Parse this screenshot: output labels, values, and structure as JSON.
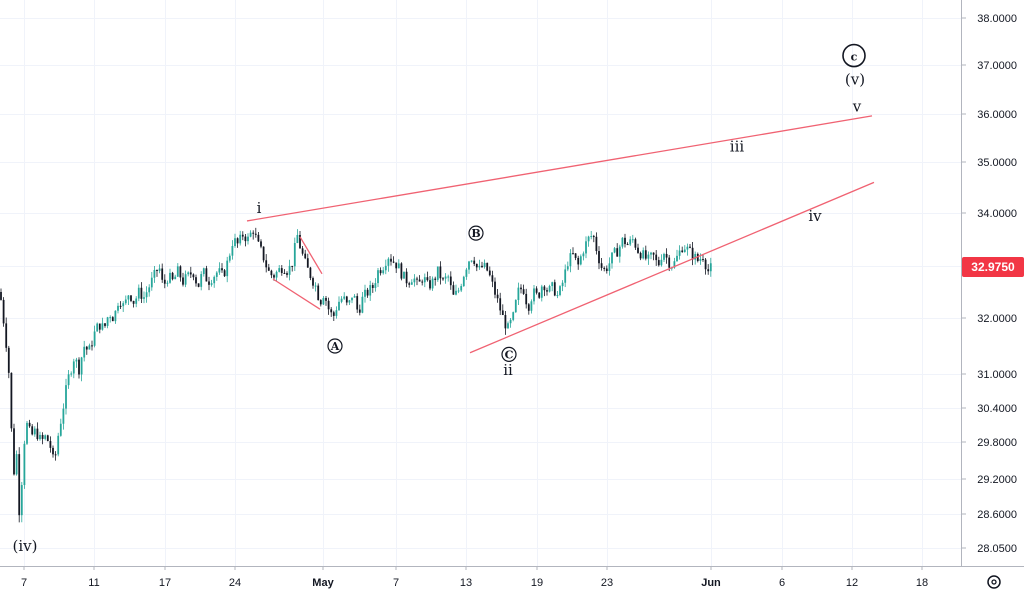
{
  "chart_data": {
    "type": "candlestick",
    "title": "",
    "xlabel": "",
    "ylabel": "",
    "x_ticks": [
      "7",
      "11",
      "17",
      "24",
      "May",
      "7",
      "13",
      "19",
      "23",
      "Jun",
      "6",
      "12",
      "18"
    ],
    "y_ticks": [
      "38.0000",
      "37.0000",
      "36.0000",
      "35.0000",
      "34.0000",
      "33.0000",
      "32.0000",
      "31.0000",
      "30.4000",
      "29.8000",
      "29.2000",
      "28.6000",
      "28.0500"
    ],
    "last_price": "32.9750",
    "price_path": [
      [
        0,
        32.5
      ],
      [
        6,
        31.6
      ],
      [
        10,
        30.8
      ],
      [
        13,
        29.1
      ],
      [
        16,
        29.8
      ],
      [
        20,
        28.4
      ],
      [
        23,
        29.7
      ],
      [
        27,
        30.1
      ],
      [
        31,
        29.9
      ],
      [
        36,
        30.0
      ],
      [
        41,
        29.8
      ],
      [
        46,
        29.9
      ],
      [
        51,
        29.7
      ],
      [
        54,
        29.4
      ],
      [
        58,
        29.9
      ],
      [
        63,
        30.4
      ],
      [
        68,
        30.9
      ],
      [
        74,
        31.3
      ],
      [
        79,
        31.1
      ],
      [
        84,
        31.5
      ],
      [
        89,
        31.4
      ],
      [
        94,
        31.7
      ],
      [
        99,
        31.9
      ],
      [
        104,
        31.8
      ],
      [
        109,
        32.1
      ],
      [
        114,
        32.0
      ],
      [
        119,
        32.4
      ],
      [
        124,
        32.2
      ],
      [
        129,
        32.5
      ],
      [
        134,
        32.3
      ],
      [
        139,
        32.5
      ],
      [
        144,
        32.4
      ],
      [
        149,
        32.6
      ],
      [
        154,
        32.8
      ],
      [
        159,
        33.0
      ],
      [
        163,
        32.6
      ],
      [
        168,
        32.8
      ],
      [
        173,
        32.7
      ],
      [
        178,
        32.9
      ],
      [
        183,
        32.7
      ],
      [
        188,
        32.8
      ],
      [
        193,
        32.9
      ],
      [
        198,
        32.6
      ],
      [
        203,
        32.9
      ],
      [
        208,
        32.7
      ],
      [
        213,
        32.8
      ],
      [
        218,
        32.9
      ],
      [
        223,
        32.8
      ],
      [
        228,
        33.1
      ],
      [
        233,
        33.5
      ],
      [
        238,
        33.4
      ],
      [
        243,
        33.6
      ],
      [
        248,
        33.5
      ],
      [
        253,
        33.7
      ],
      [
        258,
        33.4
      ],
      [
        263,
        33.2
      ],
      [
        268,
        32.9
      ],
      [
        273,
        32.8
      ],
      [
        278,
        32.9
      ],
      [
        283,
        33.0
      ],
      [
        288,
        32.9
      ],
      [
        293,
        33.1
      ],
      [
        297,
        33.6
      ],
      [
        301,
        33.3
      ],
      [
        306,
        33.0
      ],
      [
        311,
        32.8
      ],
      [
        316,
        32.6
      ],
      [
        320,
        32.3
      ],
      [
        324,
        32.5
      ],
      [
        328,
        32.2
      ],
      [
        333,
        32.0
      ],
      [
        338,
        32.3
      ],
      [
        343,
        32.4
      ],
      [
        348,
        32.2
      ],
      [
        353,
        32.5
      ],
      [
        358,
        32.1
      ],
      [
        363,
        32.4
      ],
      [
        368,
        32.5
      ],
      [
        373,
        32.6
      ],
      [
        378,
        32.9
      ],
      [
        383,
        33.0
      ],
      [
        388,
        33.2
      ],
      [
        393,
        33.1
      ],
      [
        398,
        33.0
      ],
      [
        403,
        32.8
      ],
      [
        408,
        32.7
      ],
      [
        413,
        32.8
      ],
      [
        418,
        32.6
      ],
      [
        423,
        32.8
      ],
      [
        428,
        32.6
      ],
      [
        433,
        32.7
      ],
      [
        438,
        32.9
      ],
      [
        443,
        32.7
      ],
      [
        448,
        32.8
      ],
      [
        453,
        32.4
      ],
      [
        458,
        32.5
      ],
      [
        463,
        32.8
      ],
      [
        468,
        33.1
      ],
      [
        473,
        33.2
      ],
      [
        478,
        32.9
      ],
      [
        483,
        33.0
      ],
      [
        488,
        32.9
      ],
      [
        493,
        32.6
      ],
      [
        498,
        32.3
      ],
      [
        503,
        32.0
      ],
      [
        508,
        31.8
      ],
      [
        513,
        32.0
      ],
      [
        518,
        32.5
      ],
      [
        523,
        32.6
      ],
      [
        528,
        32.2
      ],
      [
        533,
        32.5
      ],
      [
        538,
        32.4
      ],
      [
        543,
        32.7
      ],
      [
        548,
        32.5
      ],
      [
        553,
        32.6
      ],
      [
        558,
        32.4
      ],
      [
        563,
        32.7
      ],
      [
        568,
        33.1
      ],
      [
        573,
        33.2
      ],
      [
        578,
        33.0
      ],
      [
        583,
        33.3
      ],
      [
        588,
        33.5
      ],
      [
        593,
        33.6
      ],
      [
        598,
        33.2
      ],
      [
        603,
        32.9
      ],
      [
        608,
        33.0
      ],
      [
        613,
        33.2
      ],
      [
        618,
        33.3
      ],
      [
        623,
        33.5
      ],
      [
        628,
        33.4
      ],
      [
        633,
        33.5
      ],
      [
        638,
        33.3
      ],
      [
        643,
        33.2
      ],
      [
        648,
        33.1
      ],
      [
        653,
        33.2
      ],
      [
        658,
        33.0
      ],
      [
        663,
        33.3
      ],
      [
        668,
        33.1
      ],
      [
        673,
        33.0
      ],
      [
        678,
        33.2
      ],
      [
        683,
        33.4
      ],
      [
        688,
        33.3
      ],
      [
        693,
        33.2
      ],
      [
        698,
        33.1
      ],
      [
        703,
        33.2
      ],
      [
        708,
        32.9
      ],
      [
        712,
        32.98
      ]
    ],
    "trendlines": [
      {
        "name": "upper-channel-line",
        "color": "#f06272",
        "from": {
          "x": 247,
          "y": 33.85
        },
        "to": {
          "x": 872,
          "y": 35.96
        }
      },
      {
        "name": "lower-channel-line",
        "color": "#f06272",
        "from": {
          "x": 470,
          "y": 31.38
        },
        "to": {
          "x": 874,
          "y": 34.6
        }
      },
      {
        "name": "abc-line-1",
        "color": "#f06272",
        "from": {
          "x": 273,
          "y": 32.75
        },
        "to": {
          "x": 320,
          "y": 32.17
        }
      },
      {
        "name": "abc-line-2",
        "color": "#f06272",
        "from": {
          "x": 300,
          "y": 33.55
        },
        "to": {
          "x": 322,
          "y": 32.85
        }
      }
    ],
    "wave_labels": [
      {
        "text": "(iv)",
        "x": 25,
        "y": 28.0,
        "circled": false
      },
      {
        "text": "i",
        "x": 259,
        "y": 34.0,
        "circled": false
      },
      {
        "text": "A",
        "x": 335,
        "y": 31.5,
        "circled": true
      },
      {
        "text": "B",
        "x": 476,
        "y": 33.62,
        "circled": true
      },
      {
        "text": "C",
        "x": 509,
        "y": 31.35,
        "circled": true
      },
      {
        "text": "ii",
        "x": 508,
        "y": 30.98,
        "circled": false
      },
      {
        "text": "iii",
        "x": 737,
        "y": 35.22,
        "circled": false
      },
      {
        "text": "iv",
        "x": 815,
        "y": 33.85,
        "circled": false
      },
      {
        "text": "v",
        "x": 857,
        "y": 36.05,
        "circled": false
      },
      {
        "text": "(v)",
        "x": 855,
        "y": 36.6,
        "circled": false
      },
      {
        "text": "c",
        "x": 854,
        "y": 37.2,
        "circled": true
      }
    ],
    "grid": true,
    "legend": "none"
  },
  "axis_colors": {
    "price_tag_bg": "#f23645",
    "up_candle": "#26a69a",
    "down_candle": "#131722"
  },
  "icons": {
    "settings": "gear-icon"
  }
}
